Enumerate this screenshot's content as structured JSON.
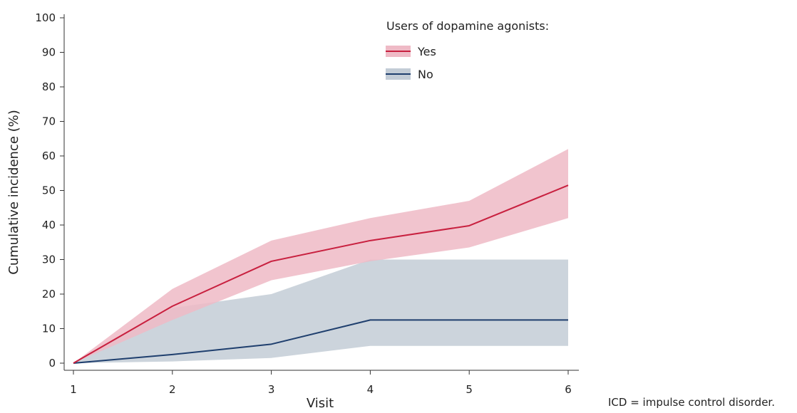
{
  "chart_data": {
    "type": "line",
    "xlabel": "Visit",
    "ylabel": "Cumulative incidence (%)",
    "x": [
      1,
      2,
      3,
      4,
      5,
      6
    ],
    "xlim": [
      1,
      6
    ],
    "ylim": [
      0,
      100
    ],
    "xticks": [
      1,
      2,
      3,
      4,
      5,
      6
    ],
    "yticks": [
      0,
      10,
      20,
      30,
      40,
      50,
      60,
      70,
      80,
      90,
      100
    ],
    "grid": false,
    "legend": {
      "title": "Users of dopamine agonists:",
      "placement": "top-right"
    },
    "series": [
      {
        "name": "Yes",
        "color": "#c8203f",
        "band_color": "#efbac6",
        "values": [
          0,
          16.5,
          29.5,
          35.5,
          39.8,
          51.5
        ],
        "lower": [
          0,
          12.5,
          24,
          29.5,
          33.5,
          42
        ],
        "upper": [
          0,
          21.5,
          35.5,
          42,
          47,
          62
        ]
      },
      {
        "name": "No",
        "color": "#1f3f6e",
        "band_color": "#c3ccd6",
        "values": [
          0,
          2.5,
          5.5,
          12.5,
          12.5,
          12.5
        ],
        "lower": [
          0,
          0.5,
          1.5,
          5,
          5,
          5
        ],
        "upper": [
          0,
          16,
          20,
          30,
          30,
          30
        ]
      }
    ]
  },
  "footnote": "ICD = impulse control disorder."
}
